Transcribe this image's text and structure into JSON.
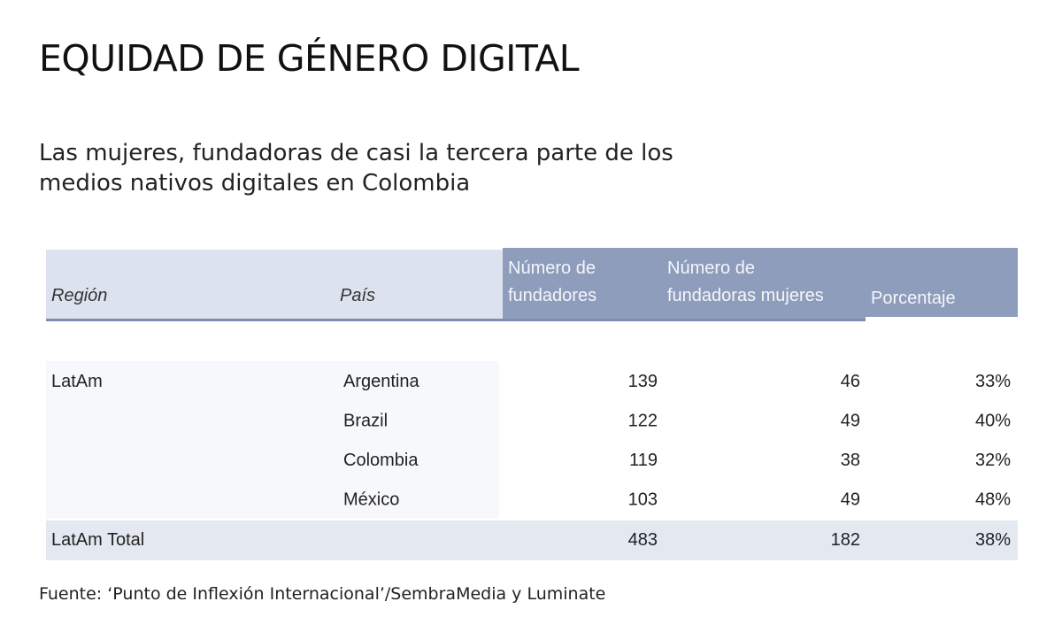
{
  "header": {
    "title": "EQUIDAD DE GÉNERO DIGITAL",
    "subtitle_line1": "Las mujeres, fundadoras de casi la tercera parte de los",
    "subtitle_line2": "medios nativos digitales en Colombia"
  },
  "footer": {
    "source": "Fuente: ‘Punto de Inflexión Internacional’/SembraMedia y Luminate"
  },
  "colors": {
    "header_light": "#dde3ee",
    "header_dark": "#8e9dbb",
    "header_underline": "#7d8fae",
    "total_row": "#e4e8f0",
    "text": "#222222"
  },
  "chart_data": {
    "type": "table",
    "columns": [
      {
        "key": "region",
        "label_lines": [
          "Región"
        ],
        "style": "light"
      },
      {
        "key": "pais",
        "label_lines": [
          "País"
        ],
        "style": "light"
      },
      {
        "key": "fundadores",
        "label_lines": [
          "Número de",
          "fundadores"
        ],
        "style": "dark"
      },
      {
        "key": "mujeres",
        "label_lines": [
          "Número de",
          "fundadoras mujeres"
        ],
        "style": "dark"
      },
      {
        "key": "porcentaje",
        "label_lines": [
          "Porcentaje"
        ],
        "style": "dark"
      }
    ],
    "rows": [
      {
        "region": "LatAm",
        "pais": "Argentina",
        "fundadores": "139",
        "mujeres": "46",
        "porcentaje": "33%"
      },
      {
        "region": "",
        "pais": "Brazil",
        "fundadores": "122",
        "mujeres": "49",
        "porcentaje": "40%"
      },
      {
        "region": "",
        "pais": "Colombia",
        "fundadores": "119",
        "mujeres": "38",
        "porcentaje": "32%"
      },
      {
        "region": "",
        "pais": "México",
        "fundadores": "103",
        "mujeres": "49",
        "porcentaje": "48%"
      }
    ],
    "total": {
      "region": "LatAm Total",
      "pais": "",
      "fundadores": "483",
      "mujeres": "182",
      "porcentaje": "38%"
    }
  }
}
